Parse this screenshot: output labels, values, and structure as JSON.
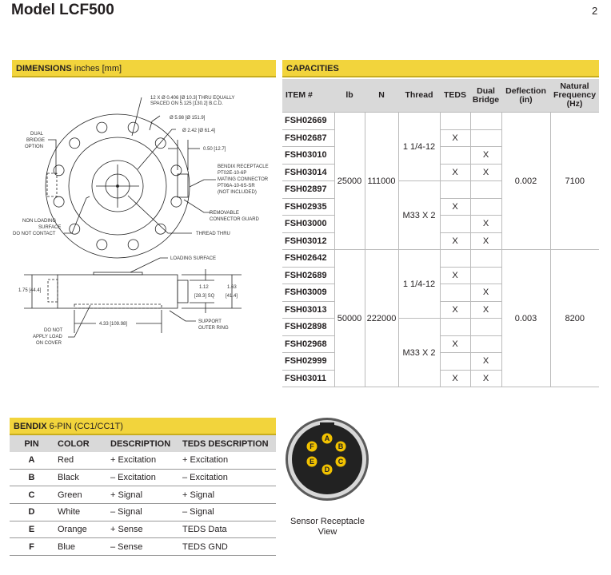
{
  "title": "Model LCF500",
  "page_number": "2",
  "dimensions": {
    "heading_bold": "DIMENSIONS",
    "heading_rest": "inches [mm]",
    "labels": {
      "holes1": "12 X Ø 0.406 [Ø 10.3] THRU EQUALLY",
      "holes2": "SPACED ON 5.125 [130.2] B.C.D.",
      "od": "Ø 5.98 [Ø 151.9]",
      "id": "Ø 2.42 [Ø 61.4]",
      "guard_w": "0.50 [12.7]",
      "dual1": "DUAL",
      "dual2": "BRIDGE",
      "dual3": "OPTION",
      "bendix1": "BENDIX RECEPTACLE",
      "bendix2": "PT02E-10-6P",
      "bendix3": "MATING CONNECTOR",
      "bendix4": "PT06A-10-6S-SR",
      "bendix5": "(NOT INCLUDED)",
      "nonload1": "NON LOADING",
      "nonload2": "SURFACE",
      "nonload3": "DO NOT CONTACT",
      "guard1": "REMOVABLE",
      "guard2": "CONNECTOR GUARD",
      "thread": "THREAD THRU",
      "loading": "LOADING SURFACE",
      "height": "1.75 [44.4]",
      "sq1": "1.12",
      "sq2": "[28.3] SQ",
      "h2a": "1.63",
      "h2b": "[41.4]",
      "width": "4.33 [109.98]",
      "support1": "SUPPORT",
      "support2": "OUTER RING",
      "cover1": "DO NOT",
      "cover2": "APPLY LOAD",
      "cover3": "ON COVER"
    }
  },
  "capacities": {
    "heading": "CAPACITIES",
    "columns": [
      "ITEM #",
      "lb",
      "N",
      "Thread",
      "TEDS",
      "Dual Bridge",
      "Deflection (in)",
      "Natural Frequency (Hz)"
    ],
    "groups": [
      {
        "lb": "25000",
        "N": "111000",
        "deflection": "0.002",
        "frequency": "7100",
        "threads": [
          "1 1/4-12",
          "M33 X 2"
        ],
        "rows": [
          {
            "item": "FSH02669",
            "teds": "",
            "dual": ""
          },
          {
            "item": "FSH02687",
            "teds": "X",
            "dual": ""
          },
          {
            "item": "FSH03010",
            "teds": "",
            "dual": "X"
          },
          {
            "item": "FSH03014",
            "teds": "X",
            "dual": "X"
          },
          {
            "item": "FSH02897",
            "teds": "",
            "dual": ""
          },
          {
            "item": "FSH02935",
            "teds": "X",
            "dual": ""
          },
          {
            "item": "FSH03000",
            "teds": "",
            "dual": "X"
          },
          {
            "item": "FSH03012",
            "teds": "X",
            "dual": "X"
          }
        ]
      },
      {
        "lb": "50000",
        "N": "222000",
        "deflection": "0.003",
        "frequency": "8200",
        "threads": [
          "1 1/4-12",
          "M33 X 2"
        ],
        "rows": [
          {
            "item": "FSH02642",
            "teds": "",
            "dual": ""
          },
          {
            "item": "FSH02689",
            "teds": "X",
            "dual": ""
          },
          {
            "item": "FSH03009",
            "teds": "",
            "dual": "X"
          },
          {
            "item": "FSH03013",
            "teds": "X",
            "dual": "X"
          },
          {
            "item": "FSH02898",
            "teds": "",
            "dual": ""
          },
          {
            "item": "FSH02968",
            "teds": "X",
            "dual": ""
          },
          {
            "item": "FSH02999",
            "teds": "",
            "dual": "X"
          },
          {
            "item": "FSH03011",
            "teds": "X",
            "dual": "X"
          }
        ]
      }
    ]
  },
  "bendix": {
    "heading_bold": "BENDIX",
    "heading_rest": "6-PIN (CC1/CC1T)",
    "columns": [
      "PIN",
      "COLOR",
      "DESCRIPTION",
      "TEDS DESCRIPTION"
    ],
    "rows": [
      [
        "A",
        "Red",
        "+ Excitation",
        "+ Excitation"
      ],
      [
        "B",
        "Black",
        "– Excitation",
        "– Excitation"
      ],
      [
        "C",
        "Green",
        "+ Signal",
        "+ Signal"
      ],
      [
        "D",
        "White",
        "– Signal",
        "– Signal"
      ],
      [
        "E",
        "Orange",
        "+ Sense",
        "TEDS Data"
      ],
      [
        "F",
        "Blue",
        "– Sense",
        "TEDS GND"
      ]
    ]
  },
  "receptacle": {
    "caption1": "Sensor Receptacle",
    "caption2": "View",
    "pins": [
      "A",
      "B",
      "C",
      "D",
      "E",
      "F"
    ],
    "pin_color": "#f2c200"
  },
  "colors": {
    "accent": "#f2d43c",
    "header_gray": "#d9d9d9"
  }
}
